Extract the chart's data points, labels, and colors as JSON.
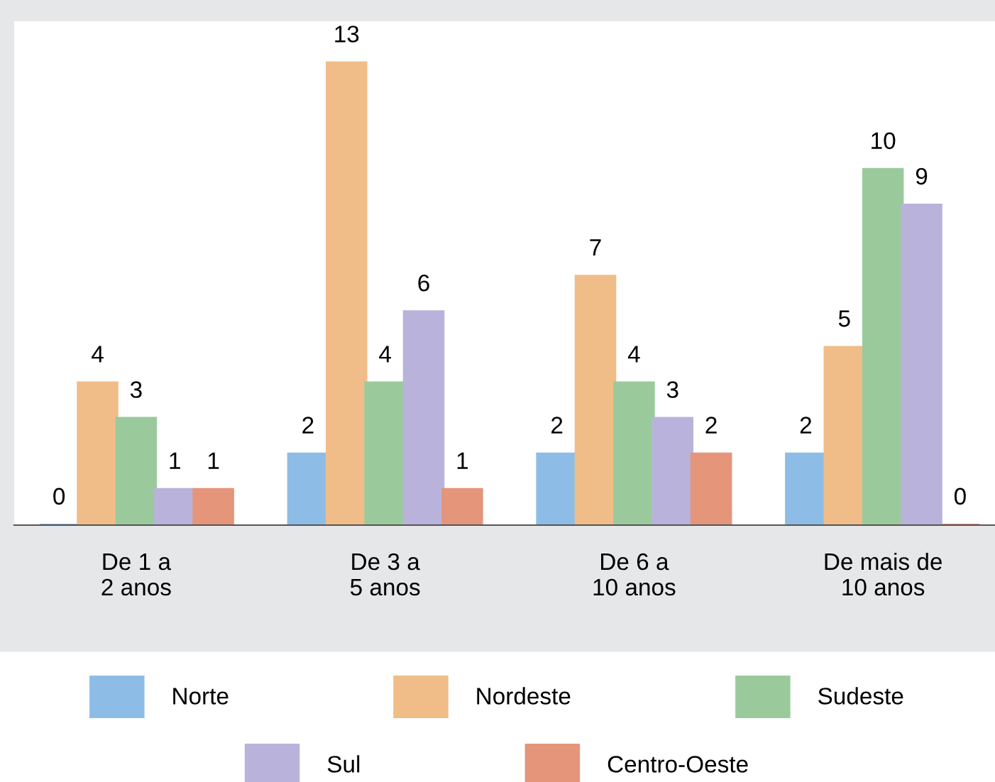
{
  "chart_data": {
    "type": "bar",
    "categories": [
      "De 1 a\n2 anos",
      "De 3 a\n5 anos",
      "De 6 a\n10 anos",
      "De mais de\n10 anos"
    ],
    "series": [
      {
        "name": "Norte",
        "color": "#8dbde6",
        "values": [
          0,
          2,
          2,
          2
        ]
      },
      {
        "name": "Nordeste",
        "color": "#f0bd88",
        "values": [
          4,
          13,
          7,
          5
        ]
      },
      {
        "name": "Sudeste",
        "color": "#9aca9c",
        "values": [
          3,
          4,
          4,
          10
        ]
      },
      {
        "name": "Sul",
        "color": "#b9b3db",
        "values": [
          1,
          6,
          3,
          9
        ]
      },
      {
        "name": "Centro-Oeste",
        "color": "#e4957a",
        "values": [
          1,
          1,
          2,
          0
        ]
      }
    ],
    "data_labels": true,
    "legend": "bottom",
    "grid": false
  }
}
